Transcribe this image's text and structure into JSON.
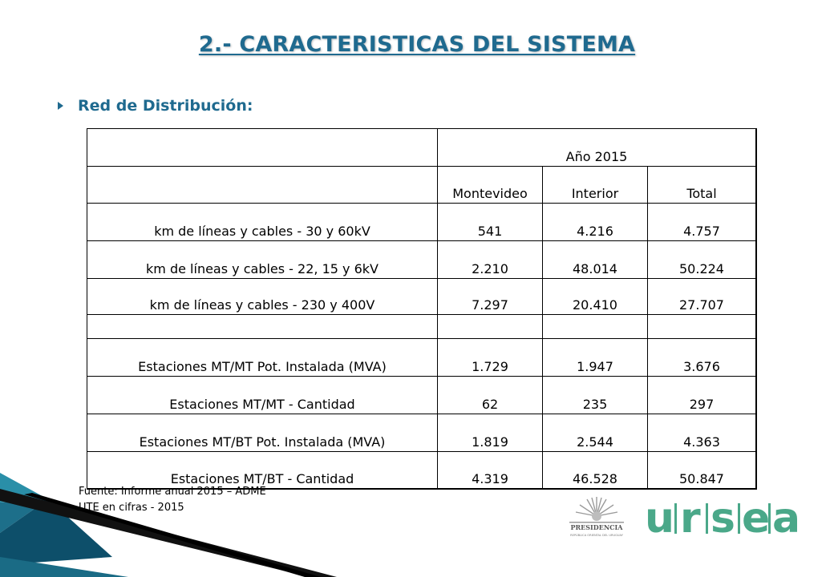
{
  "title": "2.- CARACTERISTICAS DEL SISTEMA",
  "bullet": "Red de Distribución:",
  "table": {
    "year_header": "Año 2015",
    "col_headers": [
      "Montevideo",
      "Interior",
      "Total"
    ],
    "rows": [
      {
        "label": "km de líneas y cables - 30 y 60kV",
        "montevideo": "541",
        "interior": "4.216",
        "total": "4.757"
      },
      {
        "label": "km de líneas y cables - 22, 15 y 6kV",
        "montevideo": "2.210",
        "interior": "48.014",
        "total": "50.224"
      },
      {
        "label": "km de líneas y cables - 230 y 400V",
        "montevideo": "7.297",
        "interior": "20.410",
        "total": "27.707"
      },
      {
        "label": "",
        "montevideo": "",
        "interior": "",
        "total": ""
      },
      {
        "label": "Estaciones MT/MT Pot. Instalada (MVA)",
        "montevideo": "1.729",
        "interior": "1.947",
        "total": "3.676"
      },
      {
        "label": "Estaciones MT/MT - Cantidad",
        "montevideo": "62",
        "interior": "235",
        "total": "297"
      },
      {
        "label": "Estaciones MT/BT Pot. Instalada (MVA)",
        "montevideo": "1.819",
        "interior": "2.544",
        "total": "4.363"
      },
      {
        "label": "Estaciones MT/BT - Cantidad",
        "montevideo": "4.319",
        "interior": "46.528",
        "total": "50.847"
      }
    ]
  },
  "source": {
    "line1": "Fuente: Informe anual 2015 – ADME",
    "line2": "UTE en cifras - 2015"
  },
  "logo": {
    "seal_text": "PRESIDENCIA",
    "seal_subtext": "REPÚBLICA ORIENTAL DEL URUGUAY",
    "wordmark_u": "u",
    "wordmark_r": "r",
    "wordmark_s": "s",
    "wordmark_e": "e",
    "wordmark_a": "a",
    "color": "#4aa889"
  },
  "colors": {
    "title": "#1f6a8f",
    "accent_teal": "#2a8fa8"
  }
}
